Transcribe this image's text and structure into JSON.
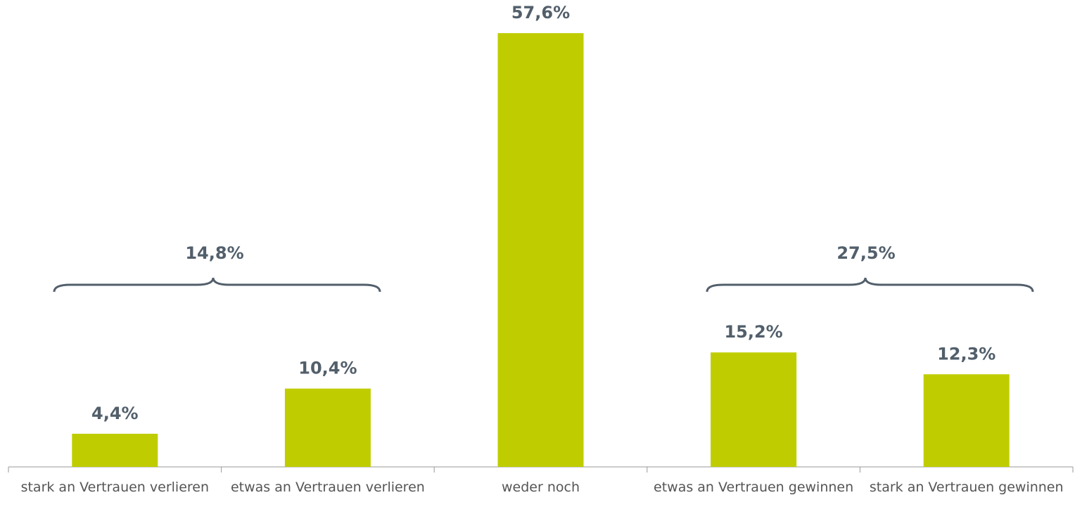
{
  "chart_data": {
    "type": "bar",
    "categories": [
      "stark an Vertrauen verlieren",
      "etwas an Vertrauen verlieren",
      "weder noch",
      "etwas an Vertrauen gewinnen",
      "stark an Vertrauen gewinnen"
    ],
    "values": [
      4.4,
      10.4,
      57.6,
      15.2,
      12.3
    ],
    "value_labels": [
      "4,4%",
      "10,4%",
      "57,6%",
      "15,2%",
      "12,3%"
    ],
    "color": "#bfcd00",
    "ylim": [
      0,
      62
    ],
    "group_labels": [
      "14,8%",
      "27,5%"
    ]
  }
}
